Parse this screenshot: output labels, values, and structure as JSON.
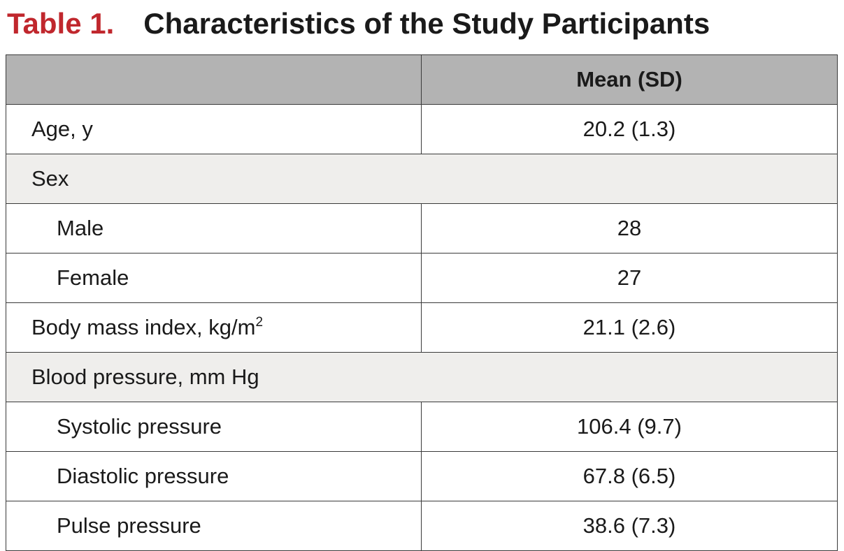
{
  "title": {
    "label": "Table 1.",
    "caption": "Characteristics of the Study Participants"
  },
  "header": {
    "col1": "",
    "col2": "Mean (SD)"
  },
  "rows": [
    {
      "variable": "Age, y",
      "value": "20.2 (1.3)"
    },
    {
      "variable": "Sex"
    },
    {
      "variable": "Male",
      "value": "28"
    },
    {
      "variable": "Female",
      "value": "27"
    },
    {
      "variable": "Body mass index, kg/m",
      "superscript": "2",
      "value": "21.1 (2.6)"
    },
    {
      "variable": "Blood pressure, mm Hg"
    },
    {
      "variable": "Systolic pressure",
      "value": "106.4 (9.7)"
    },
    {
      "variable": "Diastolic pressure",
      "value": "67.8 (6.5)"
    },
    {
      "variable": "Pulse pressure",
      "value": "38.6 (7.3)"
    }
  ],
  "colors": {
    "title_label": "#c0272d",
    "header_bg": "#b3b3b3",
    "section_bg": "#efeeec"
  }
}
